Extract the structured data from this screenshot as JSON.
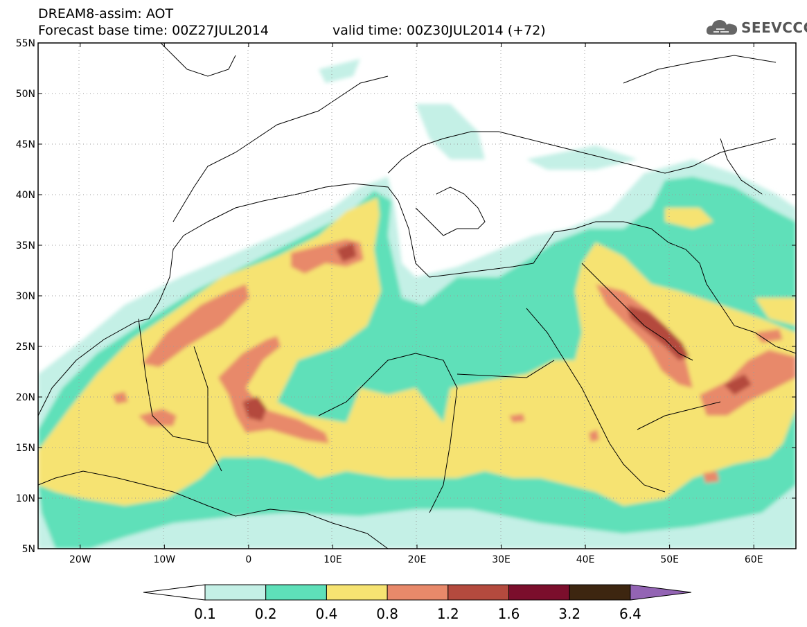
{
  "header": {
    "line1": "DREAM8-assim: AOT",
    "base_time": "Forecast base time: 00Z27JUL2014",
    "valid_time": "valid time: 00Z30JUL2014 (+72)"
  },
  "logo": {
    "text": "SEEVCCC",
    "icon": "cloud-icon"
  },
  "map": {
    "lat_labels": [
      "55N",
      "50N",
      "45N",
      "40N",
      "35N",
      "30N",
      "25N",
      "20N",
      "15N",
      "10N",
      "5N"
    ],
    "lon_labels": [
      "20W",
      "10W",
      "0",
      "10E",
      "20E",
      "30E",
      "40E",
      "50E",
      "60E"
    ],
    "lon_range": [
      -25,
      65
    ],
    "lat_range": [
      5,
      55
    ]
  },
  "colorbar": {
    "ticks": [
      "0.1",
      "0.2",
      "0.4",
      "0.8",
      "1.2",
      "1.6",
      "3.2",
      "6.4"
    ],
    "colors": [
      "#ffffff",
      "#c4f0e6",
      "#5ee0b9",
      "#f6e372",
      "#e8896a",
      "#b44a3e",
      "#7b0e2c",
      "#3d2610",
      "#9364b4"
    ]
  }
}
